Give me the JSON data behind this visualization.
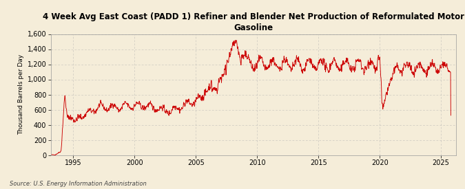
{
  "title": "4 Week Avg East Coast (PADD 1) Refiner and Blender Net Production of Reformulated Motor\nGasoline",
  "ylabel": "Thousand Barrels per Day",
  "source": "Source: U.S. Energy Information Administration",
  "background_color": "#f5edd9",
  "line_color": "#cc0000",
  "grid_color": "#b0b0b0",
  "ylim": [
    0,
    1600
  ],
  "yticks": [
    0,
    200,
    400,
    600,
    800,
    1000,
    1200,
    1400,
    1600
  ],
  "xticks": [
    1995,
    2000,
    2005,
    2010,
    2015,
    2020,
    2025
  ],
  "xlim_start": 1993.2,
  "xlim_end": 2026.2
}
